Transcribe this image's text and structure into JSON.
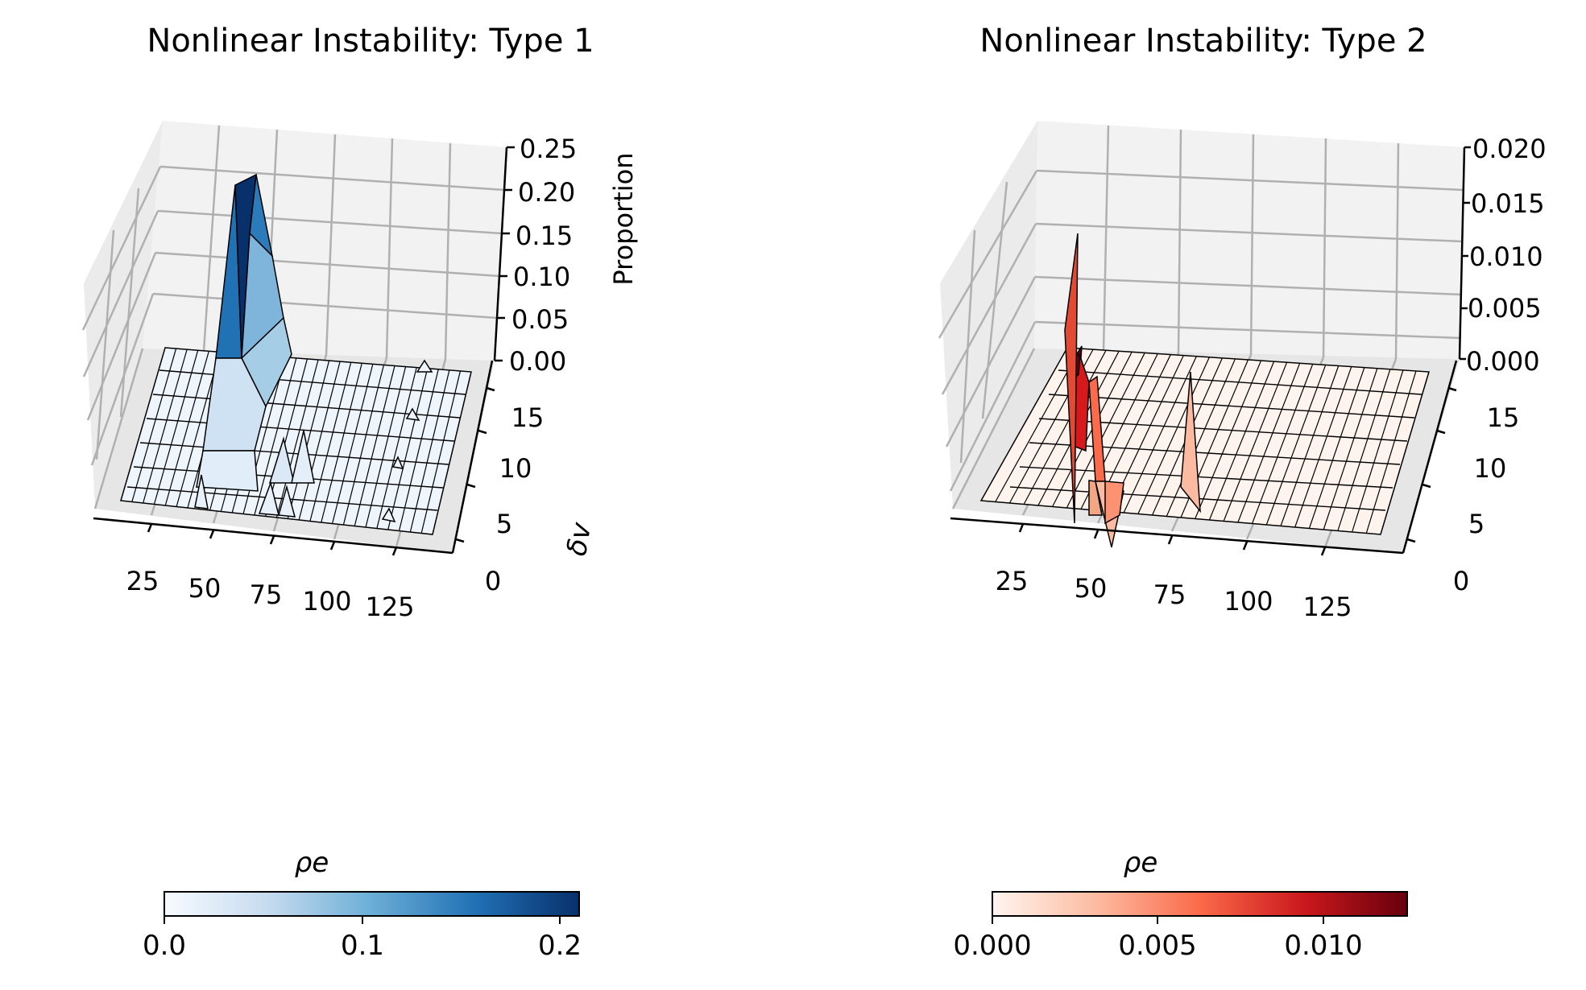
{
  "chart_data": [
    {
      "type": "surface3d",
      "title": "Nonlinear Instability: Type 1",
      "xlabel": "",
      "ylabel": "δv",
      "zlabel": "Proportion",
      "colormap": "Blues",
      "x_ticks": [
        "25",
        "50",
        "75",
        "100",
        "125"
      ],
      "y_ticks": [
        "0",
        "5",
        "10",
        "15"
      ],
      "z_ticks": [
        "0.00",
        "0.05",
        "0.10",
        "0.15",
        "0.20",
        "0.25"
      ],
      "xlim": [
        0,
        140
      ],
      "ylim": [
        0,
        17
      ],
      "zlim": [
        0,
        0.25
      ],
      "colorbar": {
        "label": "ρe",
        "ticks": [
          "0.0",
          "0.1",
          "0.2"
        ],
        "range": [
          0,
          0.21
        ]
      },
      "grid": true,
      "peaks": [
        {
          "x": 40,
          "y": 15,
          "z": 0.21
        },
        {
          "x": 44,
          "y": 14,
          "z": 0.13
        },
        {
          "x": 40,
          "y": 12,
          "z": 0.06
        },
        {
          "x": 38,
          "y": 6,
          "z": 0.03
        },
        {
          "x": 62,
          "y": 6,
          "z": 0.035
        },
        {
          "x": 70,
          "y": 7,
          "z": 0.04
        },
        {
          "x": 130,
          "y": 15,
          "z": 0.01
        },
        {
          "x": 128,
          "y": 10,
          "z": 0.008
        }
      ]
    },
    {
      "type": "surface3d",
      "title": "Nonlinear Instability: Type 2",
      "xlabel": "",
      "ylabel": "",
      "zlabel": "",
      "colormap": "Reds",
      "x_ticks": [
        "25",
        "50",
        "75",
        "100",
        "125"
      ],
      "y_ticks": [
        "0",
        "5",
        "10",
        "15"
      ],
      "z_ticks": [
        "0.000",
        "0.005",
        "0.010",
        "0.015",
        "0.020"
      ],
      "xlim": [
        0,
        140
      ],
      "ylim": [
        0,
        17
      ],
      "zlim": [
        0,
        0.02
      ],
      "colorbar": {
        "label": "ρe",
        "ticks": [
          "0.000",
          "0.005",
          "0.010"
        ],
        "range": [
          0,
          0.0125
        ]
      },
      "grid": true,
      "peaks": [
        {
          "x": 36,
          "y": 15,
          "z": 0.012
        },
        {
          "x": 36,
          "y": 12,
          "z": 0.008
        },
        {
          "x": 40,
          "y": 8,
          "z": 0.006
        },
        {
          "x": 45,
          "y": 7,
          "z": 0.003
        },
        {
          "x": 80,
          "y": 6,
          "z": 0.005
        }
      ]
    }
  ]
}
